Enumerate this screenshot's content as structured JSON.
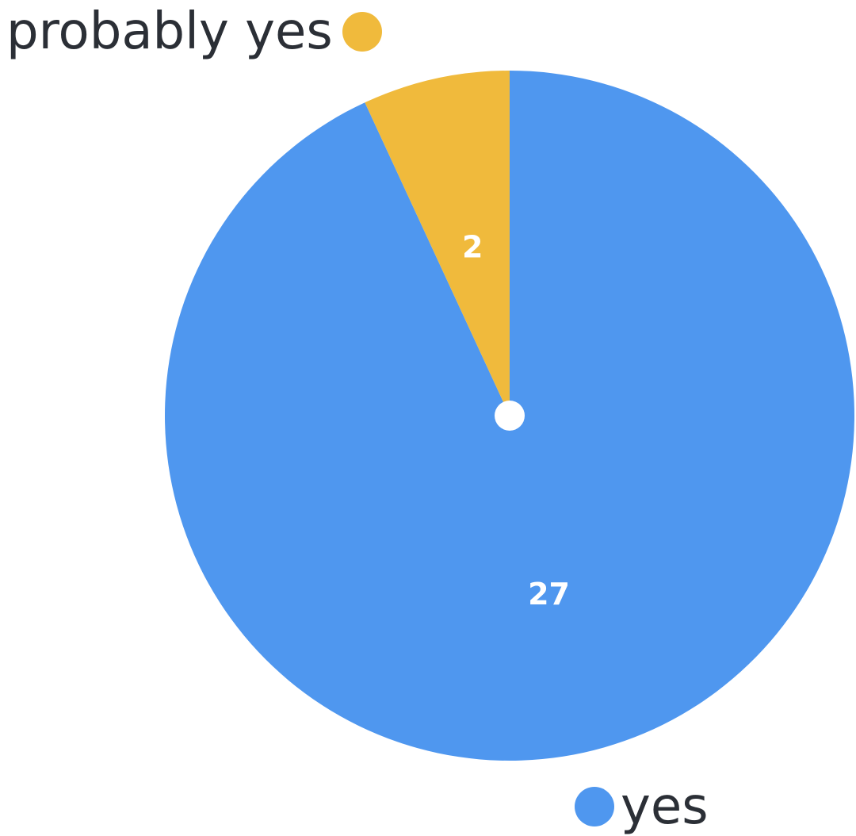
{
  "chart_data": {
    "type": "pie",
    "categories": [
      "yes",
      "probably yes"
    ],
    "values": [
      27,
      2
    ],
    "colors": [
      "#4f97ef",
      "#f0ba3c"
    ],
    "start_angle": "12 o'clock",
    "direction": "clockwise",
    "center_dot": true,
    "legend_placement": "labels at slice edges (probably yes top-left, yes bottom-right)"
  },
  "legend": [
    {
      "label": "probably yes",
      "color": "#f0ba3c"
    },
    {
      "label": "yes",
      "color": "#4f97ef"
    }
  ]
}
